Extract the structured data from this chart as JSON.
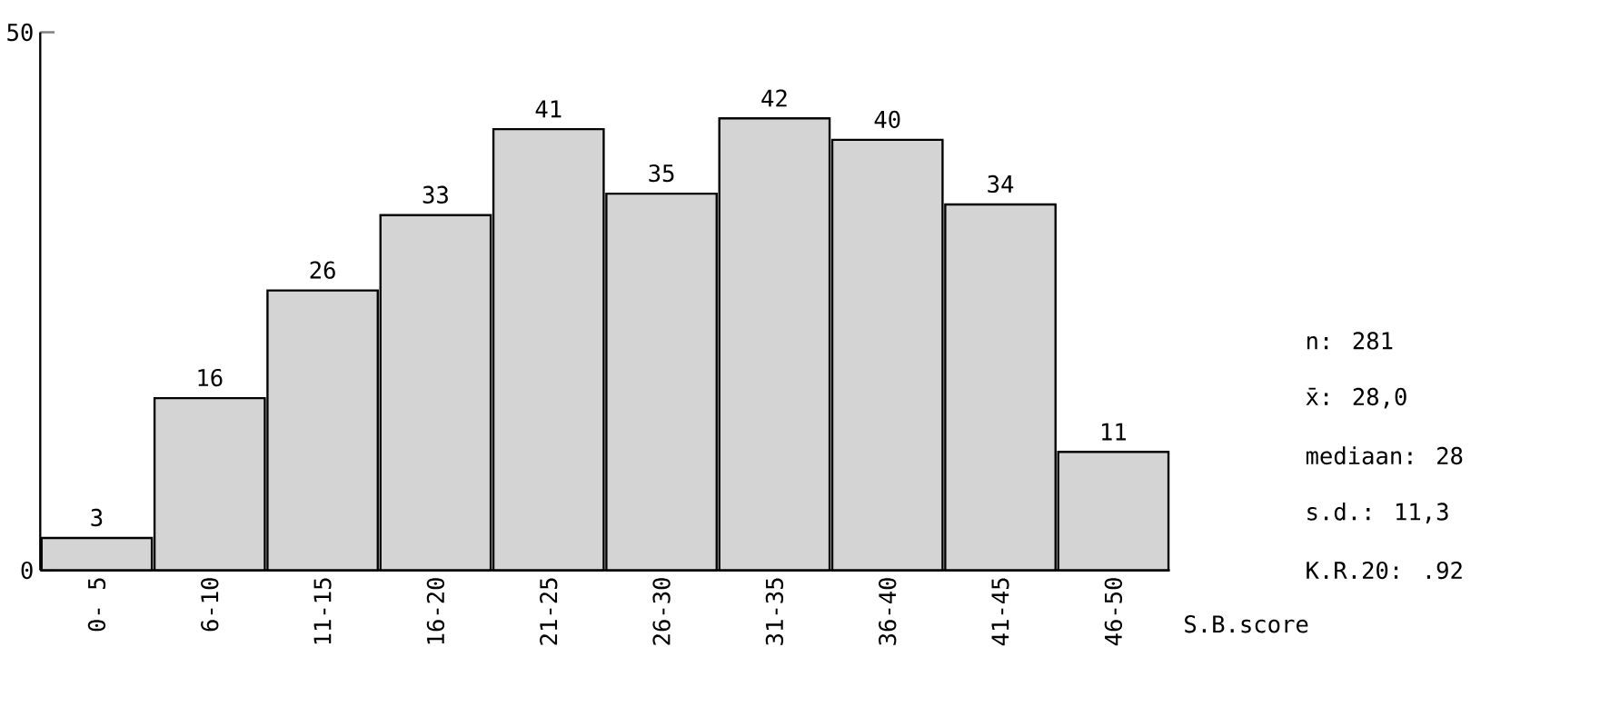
{
  "chart_data": {
    "type": "bar",
    "xlabel": "S.B.score",
    "categories": [
      "0- 5",
      "6-10",
      "11-15",
      "16-20",
      "21-25",
      "26-30",
      "31-35",
      "36-40",
      "41-45",
      "46-50"
    ],
    "values": [
      3,
      16,
      26,
      33,
      41,
      35,
      42,
      40,
      34,
      11
    ],
    "color": "#d4d4d4",
    "data_labels": true,
    "ylim": [
      0,
      50
    ],
    "yticks": [
      0,
      50
    ],
    "annotations": [
      "n: 281",
      "x̄: 28,0",
      "mediaan: 28",
      "s.d.: 11,3",
      "K.R.20: .92"
    ]
  }
}
